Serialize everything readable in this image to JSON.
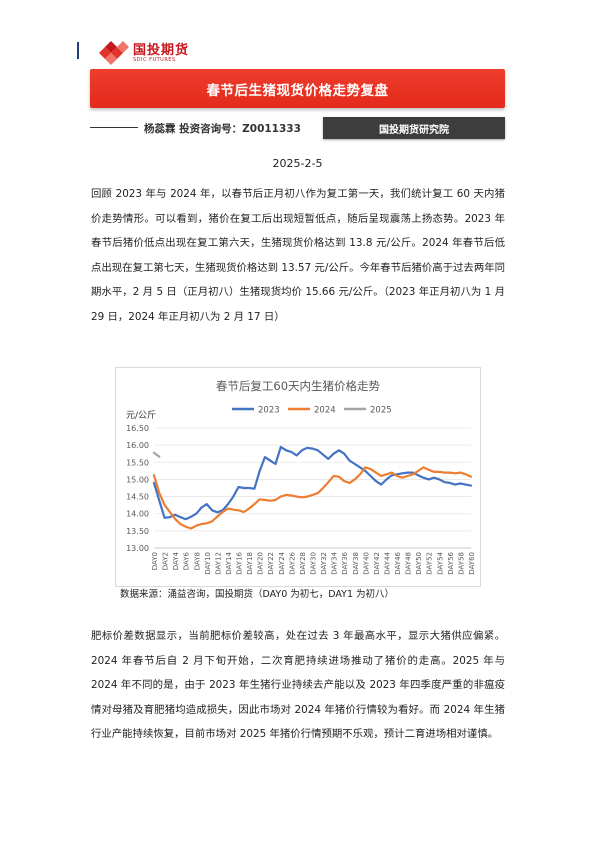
{
  "header": {
    "logo_cn": "国投期货",
    "logo_en": "SDIC FUTURES",
    "brand_color": "#c8161d"
  },
  "report": {
    "title": "春节后生猪现货价格走势复盘",
    "author": "杨蕊霖  投资咨询号：Z0011333",
    "institute": "国投期货研究院",
    "date": "2025-2-5"
  },
  "body": {
    "para1": "回顾 2023 年与 2024 年，以春节后正月初八作为复工第一天，我们统计复工 60 天内猪价走势情形。可以看到，猪价在复工后出现短暂低点，随后呈现震荡上扬态势。2023 年春节后猪价低点出现在复工第六天，生猪现货价格达到 13.8 元/公斤。2024 年春节后低点出现在复工第七天，生猪现货价格达到 13.57 元/公斤。今年春节后猪价高于过去两年同期水平，2 月 5 日（正月初八）生猪现货均价 15.66 元/公斤。（2023 年正月初八为 1 月 29 日，2024 年正月初八为 2 月 17 日）",
    "para2": "肥标价差数据显示，当前肥标价差较高，处在过去 3 年最高水平，显示大猪供应偏紧。2024 年春节后自 2 月下旬开始，二次育肥持续进场推动了猪价的走高。2025 年与 2024 年不同的是，由于 2023 年生猪行业持续去产能以及 2023 年四季度严重的非瘟疫情对母猪及育肥猪均造成损失，因此市场对 2024 年猪价行情较为看好。而 2024 年生猪行业产能持续恢复，目前市场对 2025 年猪价行情预期不乐观，预计二育进场相对谨慎。"
  },
  "figure": {
    "source": "数据来源：涌益咨询，国投期货（DAY0 为初七，DAY1 为初八）"
  },
  "chart_data": {
    "type": "line",
    "title": "春节后复工60天内生猪价格走势",
    "ylabel": "元/公斤",
    "ylim": [
      13.0,
      16.5
    ],
    "yticks": [
      "16.50",
      "16.00",
      "15.50",
      "15.00",
      "14.50",
      "14.00",
      "13.50",
      "13.00"
    ],
    "x_tick_labels": [
      "DAY0",
      "DAY2",
      "DAY4",
      "DAY6",
      "DAY8",
      "DAY10",
      "DAY12",
      "DAY14",
      "DAY16",
      "DAY18",
      "DAY20",
      "DAY22",
      "DAY24",
      "DAY26",
      "DAY28",
      "DAY30",
      "DAY32",
      "DAY34",
      "DAY36",
      "DAY38",
      "DAY40",
      "DAY42",
      "DAY44",
      "DAY46",
      "DAY48",
      "DAY50",
      "DAY52",
      "DAY54",
      "DAY56",
      "DAY58",
      "DAY60"
    ],
    "legend_position": "top-center",
    "grid": "horizontal",
    "series": [
      {
        "name": "2023",
        "color": "#4472c4",
        "values": [
          14.9,
          14.38,
          13.88,
          13.9,
          13.97,
          13.9,
          13.84,
          13.91,
          14.0,
          14.18,
          14.28,
          14.1,
          14.04,
          14.1,
          14.28,
          14.5,
          14.78,
          14.75,
          14.75,
          14.73,
          15.25,
          15.65,
          15.55,
          15.45,
          15.95,
          15.85,
          15.8,
          15.7,
          15.85,
          15.92,
          15.9,
          15.85,
          15.72,
          15.6,
          15.75,
          15.85,
          15.75,
          15.55,
          15.45,
          15.35,
          15.25,
          15.1,
          14.95,
          14.85,
          15.0,
          15.12,
          15.15,
          15.18,
          15.2,
          15.2,
          15.12,
          15.05,
          15.0,
          15.05,
          15.0,
          14.92,
          14.9,
          14.85,
          14.88,
          14.85,
          14.82
        ]
      },
      {
        "name": "2024",
        "color": "#ed7d31",
        "values": [
          15.12,
          14.6,
          14.25,
          14.05,
          13.85,
          13.7,
          13.62,
          13.57,
          13.65,
          13.7,
          13.72,
          13.78,
          13.92,
          14.05,
          14.15,
          14.12,
          14.1,
          14.05,
          14.15,
          14.28,
          14.42,
          14.4,
          14.38,
          14.4,
          14.5,
          14.55,
          14.53,
          14.5,
          14.48,
          14.5,
          14.55,
          14.6,
          14.75,
          14.92,
          15.1,
          15.08,
          14.95,
          14.9,
          15.0,
          15.15,
          15.35,
          15.3,
          15.2,
          15.1,
          15.15,
          15.2,
          15.1,
          15.05,
          15.1,
          15.15,
          15.25,
          15.35,
          15.28,
          15.22,
          15.22,
          15.2,
          15.2,
          15.18,
          15.2,
          15.15,
          15.08
        ]
      },
      {
        "name": "2025",
        "color": "#a5a5a5",
        "values": [
          15.78,
          15.66
        ]
      }
    ]
  }
}
